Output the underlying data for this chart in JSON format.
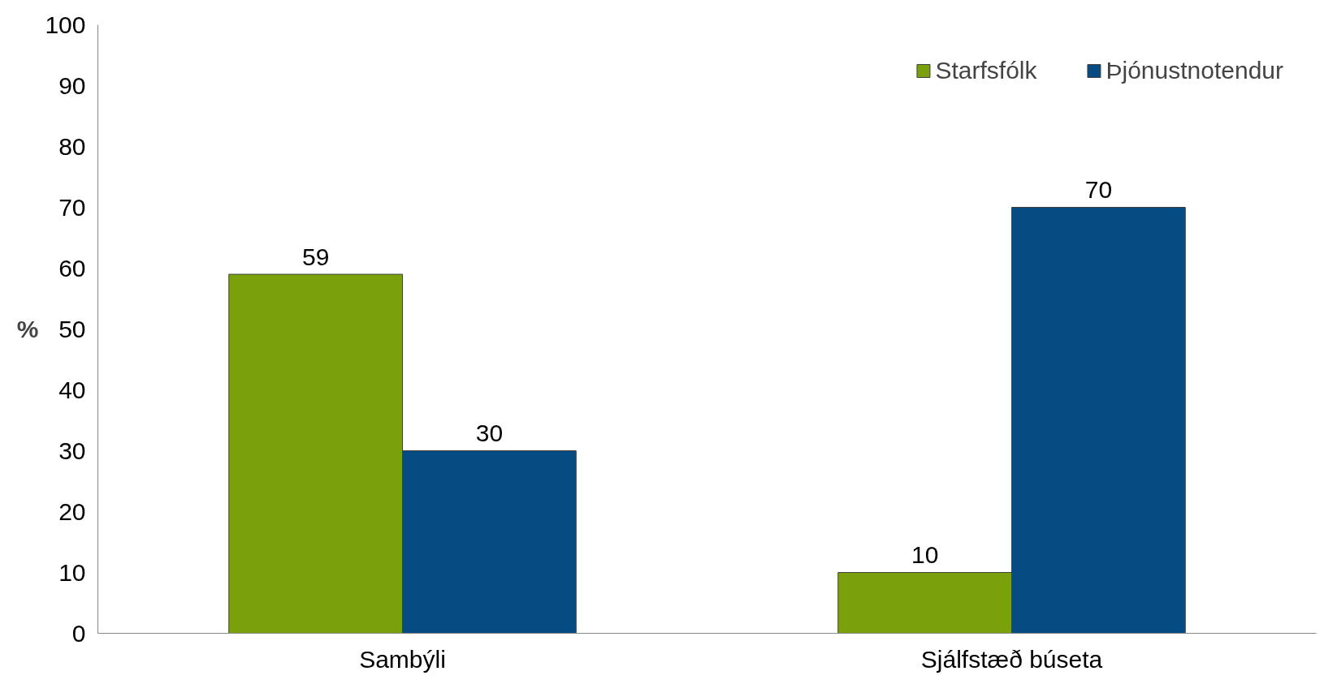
{
  "chart_data": {
    "type": "bar",
    "ylabel": "%",
    "categories": [
      "Sambýli",
      "Sjálfstæð búseta"
    ],
    "series": [
      {
        "name": "Starfsfólk",
        "color": "#7aa00c",
        "values": [
          59,
          10
        ]
      },
      {
        "name": "Þjónustnotendur",
        "color": "#064c82",
        "values": [
          30,
          70
        ]
      }
    ],
    "ylim": [
      0,
      100
    ],
    "yticks": [
      0,
      10,
      20,
      30,
      40,
      50,
      60,
      70,
      80,
      90,
      100
    ],
    "grid": false,
    "legend": "top right",
    "data_labels": true
  }
}
